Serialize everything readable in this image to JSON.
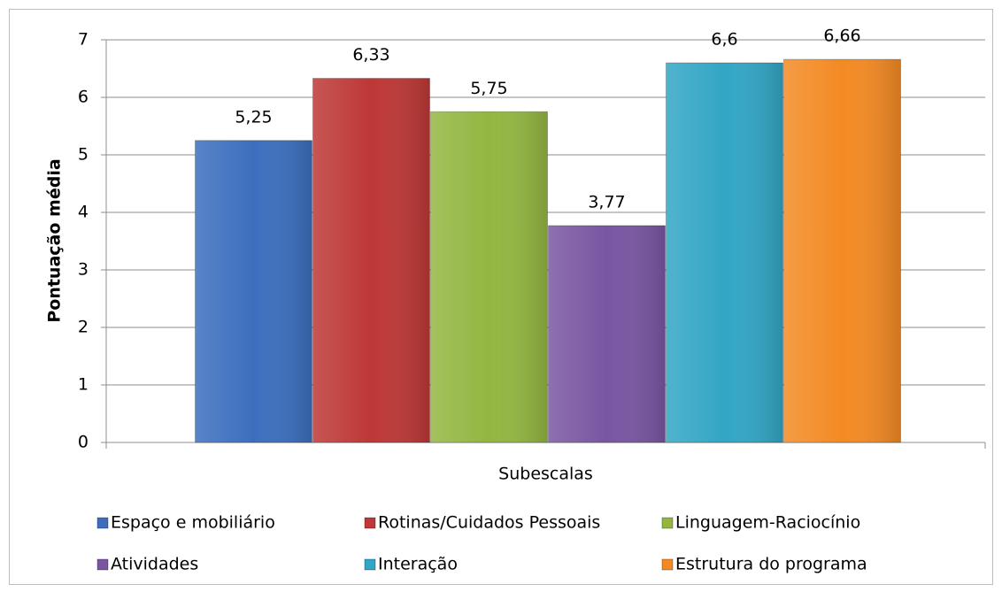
{
  "chart_data": {
    "type": "bar",
    "ylabel": "Pontuação média",
    "categories": [
      "Subescalas"
    ],
    "series": [
      {
        "name": "Espaço e mobiliário",
        "color": "#3b6fbe",
        "values": [
          5.25
        ],
        "value_labels": [
          "5,25"
        ]
      },
      {
        "name": "Rotinas/Cuidados Pessoais",
        "color": "#bd3836",
        "values": [
          6.33
        ],
        "value_labels": [
          "6,33"
        ]
      },
      {
        "name": "Linguagem-Raciocínio",
        "color": "#93b641",
        "values": [
          5.75
        ],
        "value_labels": [
          "5,75"
        ]
      },
      {
        "name": "Atividades",
        "color": "#7a56a2",
        "values": [
          3.77
        ],
        "value_labels": [
          "3,77"
        ]
      },
      {
        "name": "Interação",
        "color": "#32a6c5",
        "values": [
          6.6
        ],
        "value_labels": [
          "6,6"
        ]
      },
      {
        "name": "Estrutura do programa",
        "color": "#f38a24",
        "values": [
          6.66
        ],
        "value_labels": [
          "6,66"
        ]
      }
    ],
    "ylim": [
      0,
      7
    ],
    "yticks": [
      0,
      1,
      2,
      3,
      4,
      5,
      6,
      7
    ],
    "grid": true,
    "legend": "bottom"
  }
}
